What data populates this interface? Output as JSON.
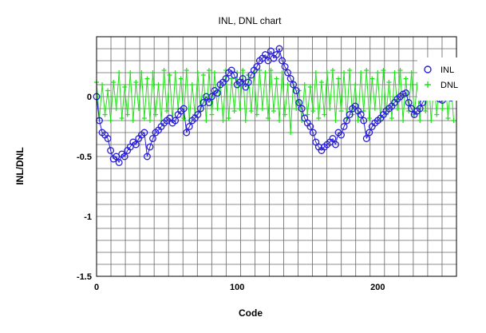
{
  "chart_data": {
    "type": "scatter",
    "title": "INL, DNL chart",
    "xlabel": "Code",
    "ylabel": "INL/DNL",
    "xlim": [
      0,
      256
    ],
    "ylim": [
      -1.5,
      0.5
    ],
    "x_ticks": [
      0,
      100,
      200
    ],
    "y_ticks": [
      0,
      -0.5,
      -1,
      -1.5
    ],
    "x_tick_labels": [
      "0",
      "100",
      "200"
    ],
    "y_tick_labels": [
      "0",
      "-0.5",
      "-1",
      "-1.5"
    ],
    "grid": true,
    "legend_position": "top-right",
    "series": [
      {
        "name": "INL",
        "marker": "circle",
        "color": "#2a1fd8",
        "x": [
          0,
          2,
          4,
          6,
          8,
          10,
          12,
          14,
          16,
          18,
          20,
          22,
          24,
          26,
          28,
          30,
          32,
          34,
          36,
          38,
          40,
          42,
          44,
          46,
          48,
          50,
          52,
          54,
          56,
          58,
          60,
          62,
          64,
          66,
          68,
          70,
          72,
          74,
          76,
          78,
          80,
          82,
          84,
          86,
          88,
          90,
          92,
          94,
          96,
          98,
          100,
          102,
          104,
          106,
          108,
          110,
          112,
          114,
          116,
          118,
          120,
          122,
          124,
          126,
          128,
          130,
          132,
          134,
          136,
          138,
          140,
          142,
          144,
          146,
          148,
          150,
          152,
          154,
          156,
          158,
          160,
          162,
          164,
          166,
          168,
          170,
          172,
          174,
          176,
          178,
          180,
          182,
          184,
          186,
          188,
          190,
          192,
          194,
          196,
          198,
          200,
          202,
          204,
          206,
          208,
          210,
          212,
          214,
          216,
          218,
          220,
          222,
          224,
          226,
          228,
          230,
          232,
          234,
          236,
          238,
          240,
          242,
          244,
          246,
          248,
          250,
          252,
          254
        ],
        "y": [
          0,
          -0.2,
          -0.3,
          -0.32,
          -0.35,
          -0.45,
          -0.52,
          -0.5,
          -0.55,
          -0.48,
          -0.5,
          -0.45,
          -0.42,
          -0.38,
          -0.4,
          -0.35,
          -0.32,
          -0.3,
          -0.5,
          -0.42,
          -0.35,
          -0.3,
          -0.28,
          -0.25,
          -0.22,
          -0.2,
          -0.18,
          -0.22,
          -0.2,
          -0.15,
          -0.12,
          -0.1,
          -0.3,
          -0.25,
          -0.2,
          -0.18,
          -0.15,
          -0.1,
          -0.05,
          0,
          -0.05,
          0,
          0.05,
          0.03,
          0.1,
          0.12,
          0.15,
          0.2,
          0.22,
          0.18,
          0.1,
          0.12,
          0.15,
          0.08,
          0.12,
          0.18,
          0.22,
          0.25,
          0.3,
          0.32,
          0.35,
          0.3,
          0.38,
          0.32,
          0.35,
          0.4,
          0.3,
          0.25,
          0.2,
          0.15,
          0.1,
          0.05,
          -0.05,
          -0.1,
          -0.18,
          -0.22,
          -0.25,
          -0.3,
          -0.38,
          -0.42,
          -0.45,
          -0.42,
          -0.4,
          -0.38,
          -0.35,
          -0.4,
          -0.3,
          -0.32,
          -0.25,
          -0.2,
          -0.15,
          -0.1,
          -0.08,
          -0.12,
          -0.15,
          -0.2,
          -0.35,
          -0.3,
          -0.25,
          -0.22,
          -0.2,
          -0.18,
          -0.15,
          -0.12,
          -0.1,
          -0.08,
          -0.05,
          -0.02,
          0,
          0.02,
          0.03,
          -0.05,
          -0.1,
          -0.15,
          -0.12,
          -0.1,
          -0.05,
          0,
          0.03,
          0.05,
          0.02,
          0,
          -0.02,
          -0.03,
          0,
          0.02,
          -0.01,
          0
        ]
      },
      {
        "name": "DNL",
        "marker": "plus",
        "color": "#22e01a",
        "x": [
          0,
          2,
          4,
          6,
          8,
          10,
          12,
          14,
          16,
          18,
          20,
          22,
          24,
          26,
          28,
          30,
          32,
          34,
          36,
          38,
          40,
          42,
          44,
          46,
          48,
          50,
          52,
          54,
          56,
          58,
          60,
          62,
          64,
          66,
          68,
          70,
          72,
          74,
          76,
          78,
          80,
          82,
          84,
          86,
          88,
          90,
          92,
          94,
          96,
          98,
          100,
          102,
          104,
          106,
          108,
          110,
          112,
          114,
          116,
          118,
          120,
          122,
          124,
          126,
          128,
          130,
          132,
          134,
          136,
          138,
          140,
          142,
          144,
          146,
          148,
          150,
          152,
          154,
          156,
          158,
          160,
          162,
          164,
          166,
          168,
          170,
          172,
          174,
          176,
          178,
          180,
          182,
          184,
          186,
          188,
          190,
          192,
          194,
          196,
          198,
          200,
          202,
          204,
          206,
          208,
          210,
          212,
          214,
          216,
          218,
          220,
          222,
          224,
          226,
          228,
          230,
          232,
          234,
          236,
          238,
          240,
          242,
          244,
          246,
          248,
          250,
          252,
          254
        ],
        "y": [
          0.12,
          -0.18,
          0.1,
          -0.15,
          0.05,
          -0.2,
          0.12,
          -0.1,
          0.2,
          -0.18,
          0.08,
          -0.15,
          0.2,
          -0.2,
          0.12,
          -0.1,
          0.2,
          -0.18,
          0.15,
          -0.2,
          0.2,
          -0.15,
          0.1,
          -0.2,
          0.22,
          -0.12,
          0.18,
          -0.2,
          0.2,
          -0.1,
          0.15,
          -0.18,
          0.22,
          -0.2,
          0.1,
          -0.15,
          0.2,
          -0.12,
          0.18,
          -0.2,
          0.22,
          -0.15,
          0.2,
          -0.1,
          0.12,
          -0.2,
          0.22,
          -0.18,
          0.15,
          -0.12,
          0.2,
          -0.1,
          0.22,
          -0.2,
          0.18,
          -0.12,
          0.2,
          -0.15,
          0.22,
          -0.1,
          0.2,
          -0.18,
          0.22,
          -0.12,
          0.15,
          -0.2,
          0.2,
          -0.15,
          0.1,
          -0.3,
          0.12,
          -0.1,
          0.05,
          -0.2,
          0.1,
          -0.15,
          0.08,
          -0.12,
          0.2,
          -0.18,
          0.12,
          -0.15,
          0.2,
          -0.1,
          0.22,
          -0.2,
          0.15,
          -0.12,
          0.2,
          -0.18,
          0.22,
          -0.15,
          0.1,
          -0.2,
          0.2,
          -0.12,
          0.22,
          -0.18,
          0.15,
          -0.1,
          0.2,
          -0.2,
          0.22,
          -0.15,
          0.12,
          -0.18,
          0.2,
          -0.1,
          0.22,
          -0.2,
          0.15,
          -0.12,
          0.2,
          -0.15,
          0.1,
          -0.2,
          0.22,
          -0.12,
          0.18,
          -0.2,
          0.12,
          -0.15,
          0.2,
          -0.1,
          0.15,
          -0.18,
          0.12,
          -0.2
        ]
      }
    ]
  }
}
